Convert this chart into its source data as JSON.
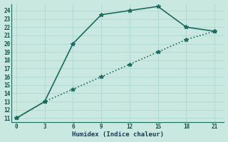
{
  "line1_x": [
    0,
    3,
    6,
    9,
    12,
    15,
    18,
    21
  ],
  "line1_y": [
    11,
    13,
    20,
    23.5,
    24,
    24.5,
    22,
    21.5
  ],
  "line2_x": [
    0,
    3,
    6,
    9,
    12,
    15,
    18,
    21
  ],
  "line2_y": [
    11,
    13,
    14.5,
    16,
    17.5,
    19,
    20.5,
    21.5
  ],
  "line_color": "#1a6b5e",
  "bg_color": "#c8e8e0",
  "grid_color": "#b0d8d0",
  "xlabel": "Humidex (Indice chaleur)",
  "xlim": [
    -0.5,
    22
  ],
  "ylim": [
    10.5,
    24.8
  ],
  "xticks": [
    0,
    3,
    6,
    9,
    12,
    15,
    18,
    21
  ],
  "yticks": [
    11,
    12,
    13,
    14,
    15,
    16,
    17,
    18,
    19,
    20,
    21,
    22,
    23,
    24
  ],
  "tick_color": "#1a5040",
  "xlabel_color": "#1a3a5a",
  "markersize": 4,
  "linewidth": 1.2
}
